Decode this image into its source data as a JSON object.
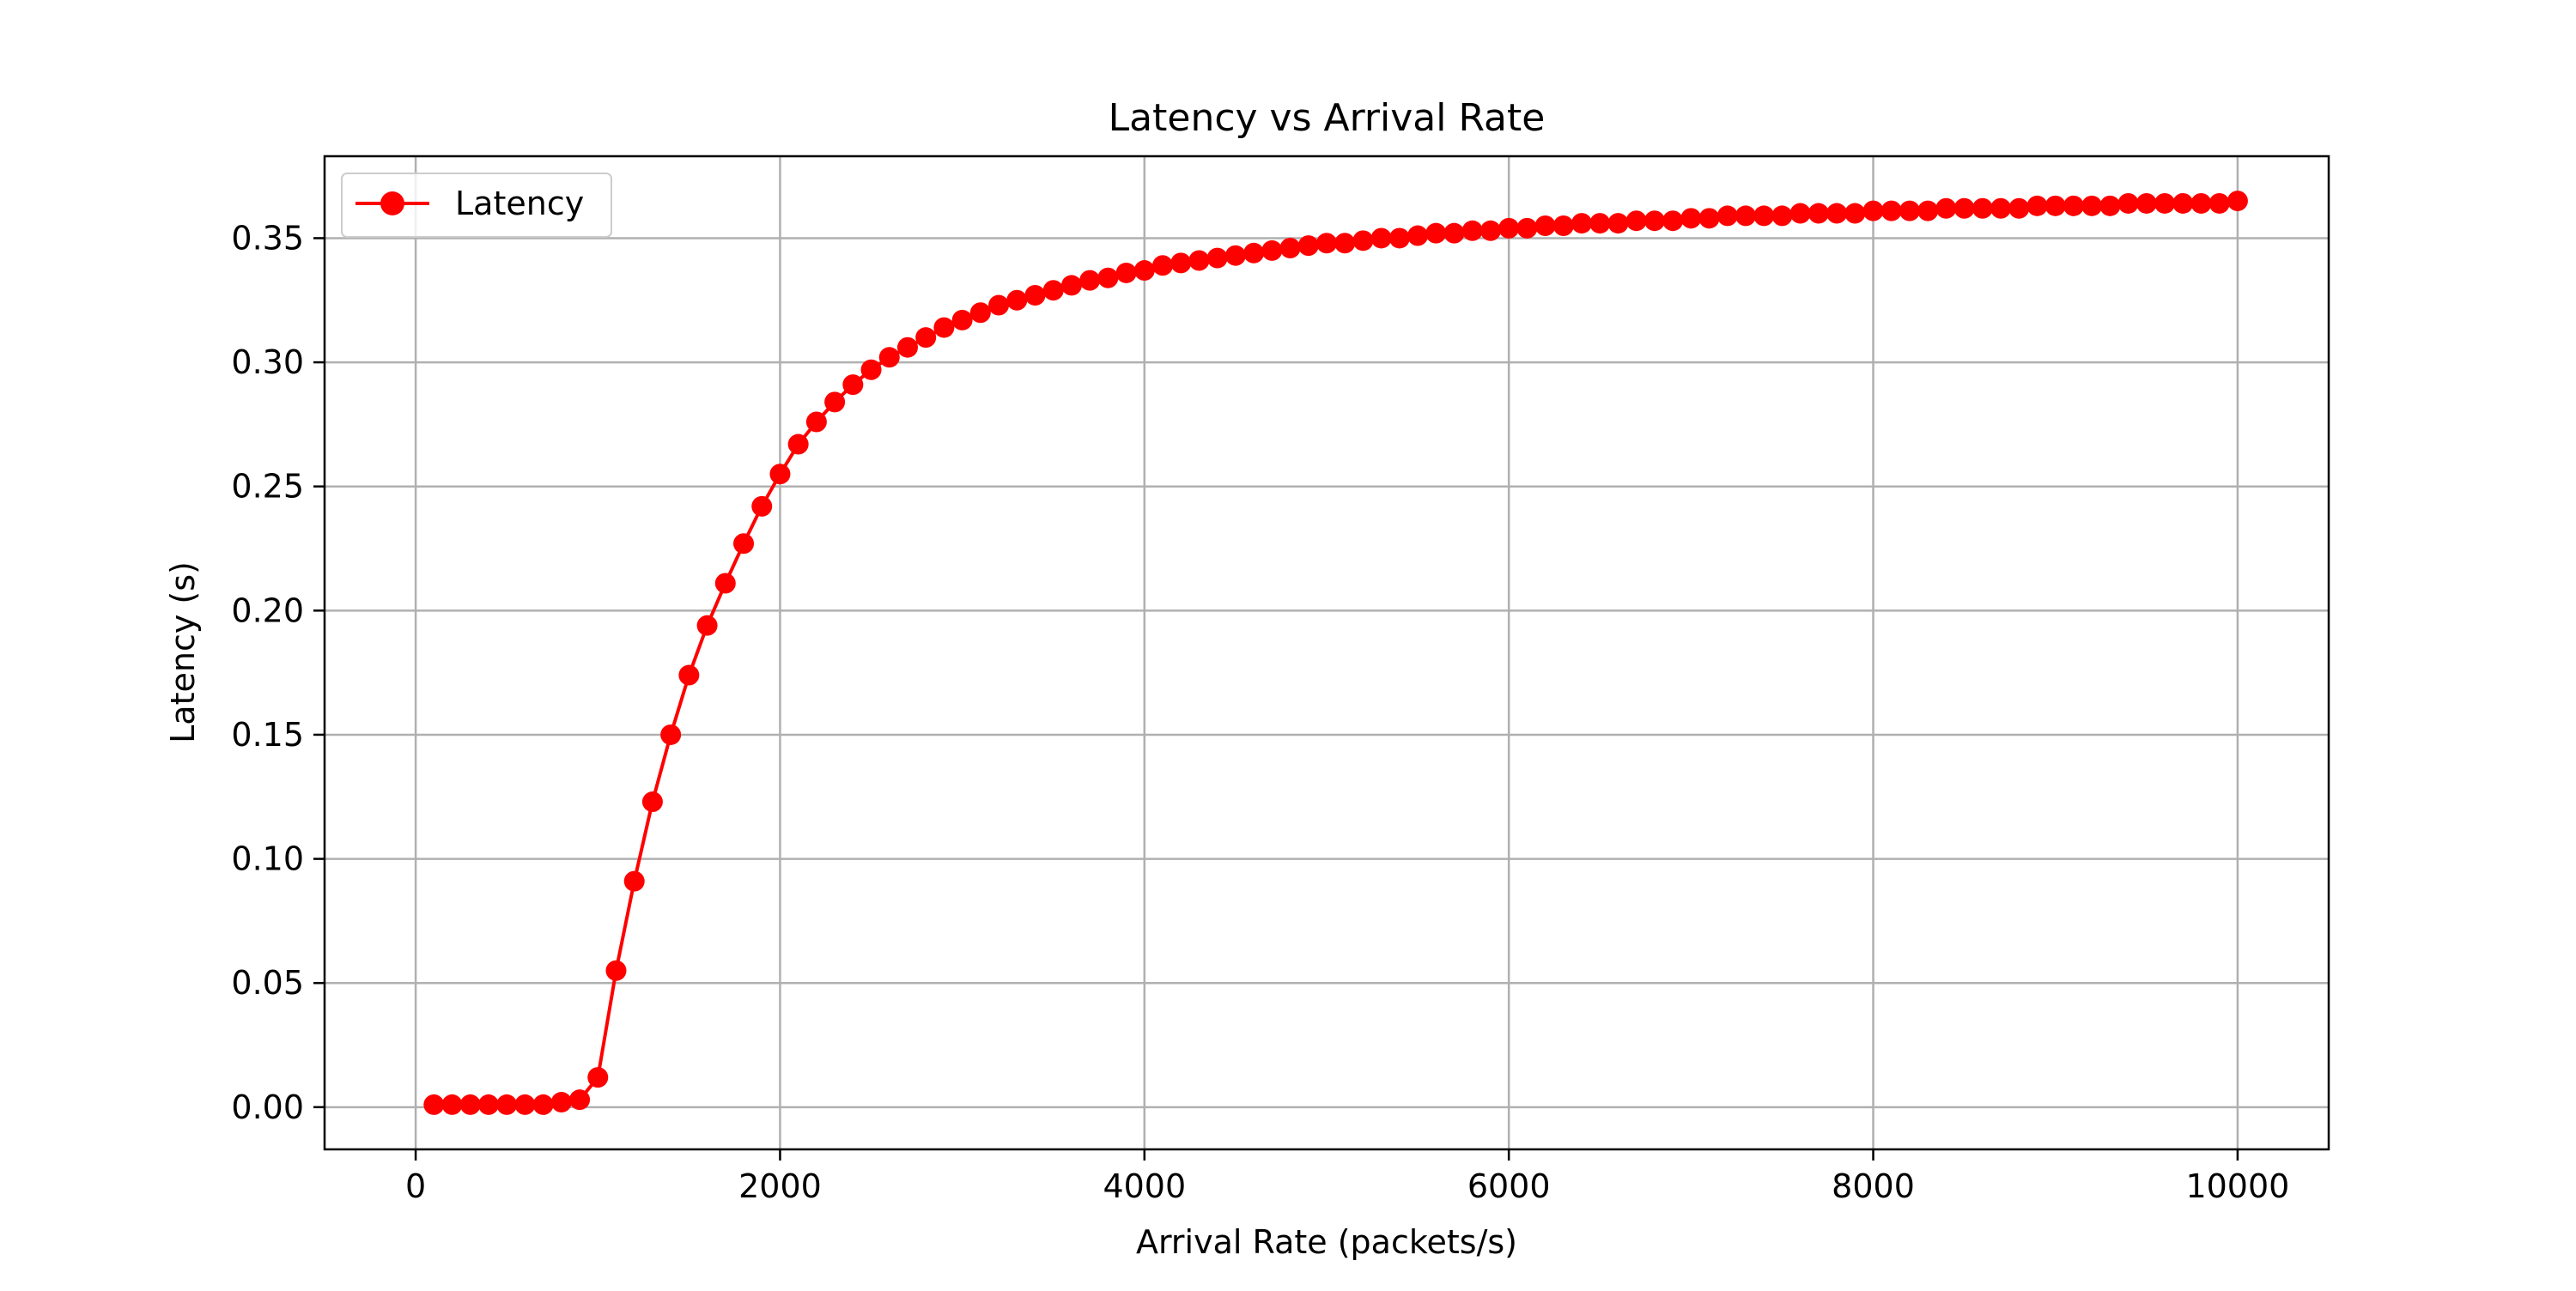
{
  "chart_data": {
    "type": "line",
    "title": "Latency vs Arrival Rate",
    "xlabel": "Arrival Rate (packets/s)",
    "ylabel": "Latency (s)",
    "xlim": [
      -500,
      10500
    ],
    "ylim": [
      -0.017,
      0.383
    ],
    "xticks": [
      0,
      2000,
      4000,
      6000,
      8000,
      10000
    ],
    "xtick_labels": [
      "0",
      "2000",
      "4000",
      "6000",
      "8000",
      "10000"
    ],
    "yticks": [
      0.0,
      0.05,
      0.1,
      0.15,
      0.2,
      0.25,
      0.3,
      0.35
    ],
    "ytick_labels": [
      "0.00",
      "0.05",
      "0.10",
      "0.15",
      "0.20",
      "0.25",
      "0.30",
      "0.35"
    ],
    "grid": true,
    "legend_position": "upper-left",
    "series": [
      {
        "name": "Latency",
        "color": "#ff0000",
        "marker": "circle",
        "x": [
          100,
          200,
          300,
          400,
          500,
          600,
          700,
          800,
          900,
          1000,
          1100,
          1200,
          1300,
          1400,
          1500,
          1600,
          1700,
          1800,
          1900,
          2000,
          2100,
          2200,
          2300,
          2400,
          2500,
          2600,
          2700,
          2800,
          2900,
          3000,
          3100,
          3200,
          3300,
          3400,
          3500,
          3600,
          3700,
          3800,
          3900,
          4000,
          4100,
          4200,
          4300,
          4400,
          4500,
          4600,
          4700,
          4800,
          4900,
          5000,
          5100,
          5200,
          5300,
          5400,
          5500,
          5600,
          5700,
          5800,
          5900,
          6000,
          6100,
          6200,
          6300,
          6400,
          6500,
          6600,
          6700,
          6800,
          6900,
          7000,
          7100,
          7200,
          7300,
          7400,
          7500,
          7600,
          7700,
          7800,
          7900,
          8000,
          8100,
          8200,
          8300,
          8400,
          8500,
          8600,
          8700,
          8800,
          8900,
          9000,
          9100,
          9200,
          9300,
          9400,
          9500,
          9600,
          9700,
          9800,
          9900,
          10000
        ],
        "y": [
          0.001,
          0.001,
          0.001,
          0.001,
          0.001,
          0.001,
          0.001,
          0.002,
          0.003,
          0.012,
          0.055,
          0.091,
          0.123,
          0.15,
          0.174,
          0.194,
          0.211,
          0.227,
          0.242,
          0.255,
          0.267,
          0.276,
          0.284,
          0.291,
          0.297,
          0.302,
          0.306,
          0.31,
          0.314,
          0.317,
          0.32,
          0.323,
          0.325,
          0.327,
          0.329,
          0.331,
          0.333,
          0.334,
          0.336,
          0.337,
          0.339,
          0.34,
          0.341,
          0.342,
          0.343,
          0.344,
          0.345,
          0.346,
          0.347,
          0.348,
          0.348,
          0.349,
          0.35,
          0.35,
          0.351,
          0.352,
          0.352,
          0.353,
          0.353,
          0.354,
          0.354,
          0.355,
          0.355,
          0.356,
          0.356,
          0.356,
          0.357,
          0.357,
          0.357,
          0.358,
          0.358,
          0.359,
          0.359,
          0.359,
          0.359,
          0.36,
          0.36,
          0.36,
          0.36,
          0.361,
          0.361,
          0.361,
          0.361,
          0.362,
          0.362,
          0.362,
          0.362,
          0.362,
          0.363,
          0.363,
          0.363,
          0.363,
          0.363,
          0.364,
          0.364,
          0.364,
          0.364,
          0.364,
          0.364,
          0.365
        ]
      }
    ]
  }
}
